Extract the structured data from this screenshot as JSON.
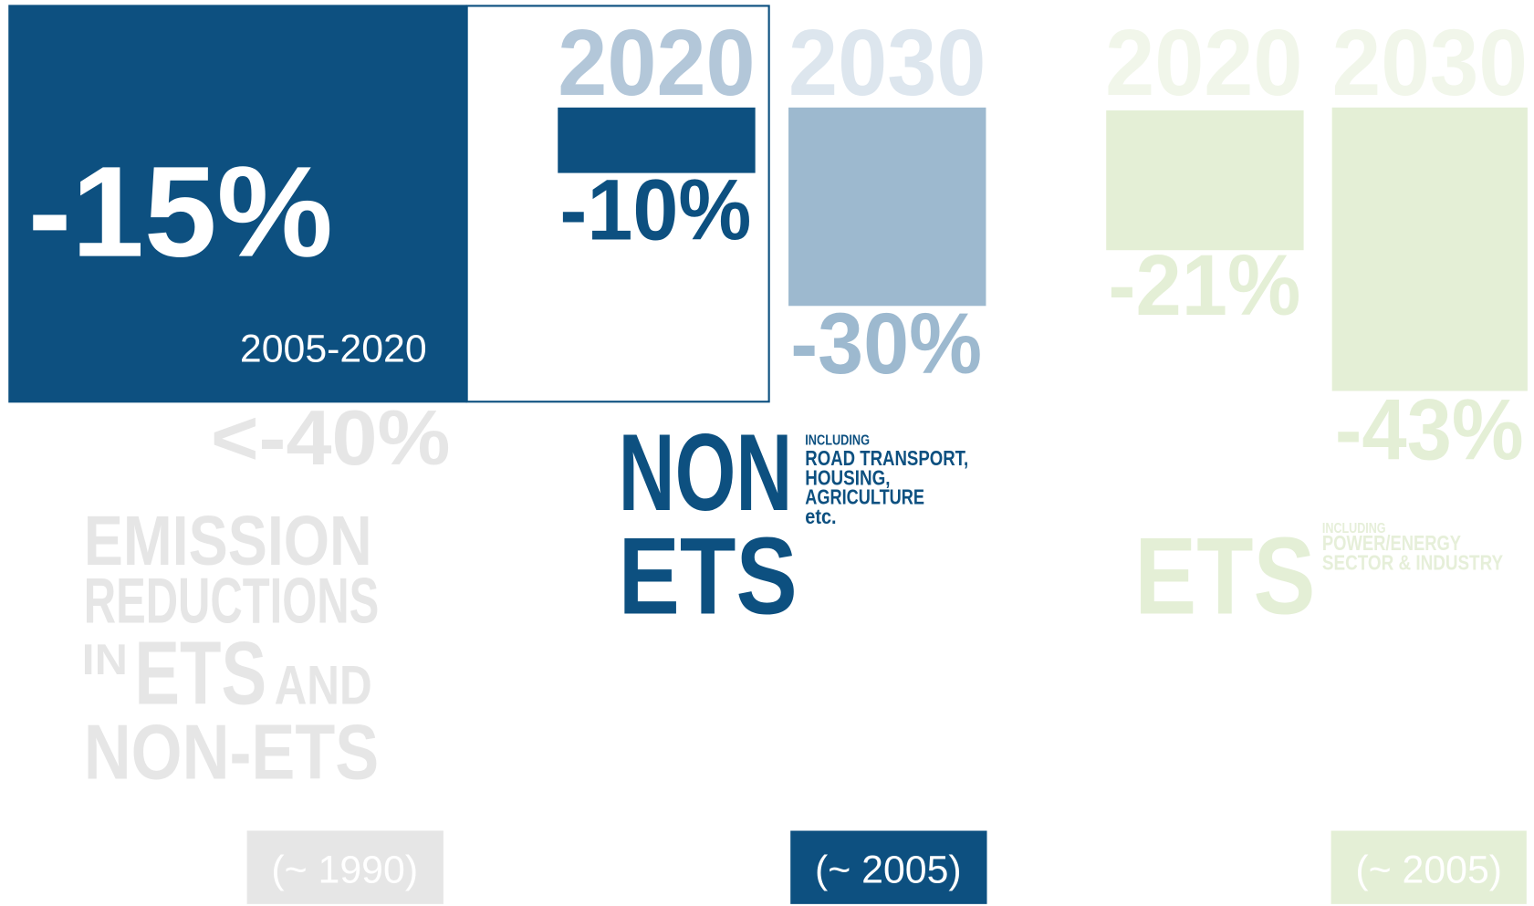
{
  "callout": {
    "value": "-15%",
    "period": "2005-2020"
  },
  "overall": {
    "target": "<-40%",
    "heading": [
      "EMISSION",
      "REDUCTIONS",
      "IN",
      "ETS",
      "AND",
      "NON-ETS"
    ],
    "baseline": "(~ 1990)"
  },
  "non_ets": {
    "bars": [
      {
        "year": "2020",
        "label": "-10%"
      },
      {
        "year": "2030",
        "label": "-30%"
      }
    ],
    "title": [
      "NON",
      "ETS"
    ],
    "note": [
      "INCLUDING",
      "ROAD TRANSPORT,",
      "HOUSING,",
      "AGRICULTURE",
      "etc."
    ],
    "baseline": "(~ 2005)"
  },
  "ets": {
    "bars": [
      {
        "year": "2020",
        "label": "-21%"
      },
      {
        "year": "2030",
        "label": "-43%"
      }
    ],
    "title": [
      "ETS"
    ],
    "note": [
      "INCLUDING",
      "POWER/ENERGY",
      "SECTOR & INDUSTRY"
    ],
    "baseline": "(~ 2005)"
  }
}
